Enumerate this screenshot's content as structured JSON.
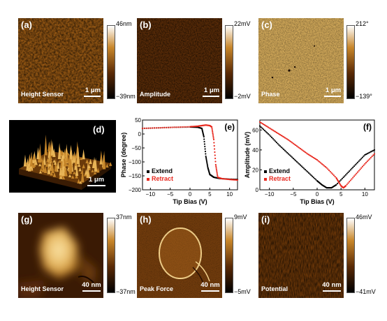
{
  "panels": {
    "a": {
      "label": "(a)",
      "caption": "Height Sensor",
      "scale": "1 μm",
      "cb_max": "46nm",
      "cb_min": "−39nm"
    },
    "b": {
      "label": "(b)",
      "caption": "Amplitude",
      "scale": "1 μm",
      "cb_max": "22mV",
      "cb_min": "−2mV"
    },
    "c": {
      "label": "(c)",
      "caption": "Phase",
      "scale": "1 μm",
      "cb_max": "212°",
      "cb_min": "−139°"
    },
    "d": {
      "label": "(d)",
      "scale": "1 μm"
    },
    "g": {
      "label": "(g)",
      "caption": "Height Sensor",
      "scale": "40 nm",
      "cb_max": "37nm",
      "cb_min": "−37nm"
    },
    "h": {
      "label": "(h)",
      "caption": "Peak Force",
      "scale": "40 nm",
      "cb_max": "9mV",
      "cb_min": "−5mV"
    },
    "i": {
      "label": "(i)",
      "caption": "Potential",
      "scale": "40 nm",
      "cb_max": "46mV",
      "cb_min": "−41mV"
    }
  },
  "colors": {
    "extend": "#000000",
    "retract": "#e8281e",
    "afm_dark": "#2a1204",
    "afm_mid": "#9a5a14",
    "afm_light": "#f4e2b0"
  },
  "chart_data": [
    {
      "id": "e",
      "label": "(e)",
      "type": "scatter",
      "xlabel": "Tip Bias (V)",
      "ylabel": "Phase (degree)",
      "xlim": [
        -12,
        12
      ],
      "ylim": [
        -200,
        50
      ],
      "xticks": [
        -10,
        -5,
        0,
        5,
        10
      ],
      "yticks": [
        -200,
        -150,
        -100,
        -50,
        0,
        50
      ],
      "xticklabels": [
        "−10",
        "−5",
        "0",
        "5",
        "10"
      ],
      "yticklabels": [
        "−200",
        "−150",
        "−100",
        "−50",
        "0",
        "50"
      ],
      "legend": [
        "Extend",
        "Retract"
      ],
      "legend_position": "bottom-left",
      "series": [
        {
          "name": "Extend",
          "color": "#000000",
          "x": [
            -12,
            -8,
            -4,
            0,
            2,
            3,
            3.5,
            4,
            4.5,
            5,
            5.5,
            6,
            7,
            8,
            10,
            12
          ],
          "y": [
            20,
            22,
            24,
            25,
            24,
            20,
            -10,
            -80,
            -120,
            -145,
            -150,
            -155,
            -158,
            -160,
            -162,
            -163
          ]
        },
        {
          "name": "Retract",
          "color": "#e8281e",
          "x": [
            12,
            10,
            8,
            7,
            6.5,
            6,
            5.5,
            5,
            4,
            3,
            2,
            0,
            -4,
            -8,
            -12
          ],
          "y": [
            -165,
            -163,
            -160,
            -155,
            -110,
            -20,
            25,
            30,
            32,
            30,
            28,
            26,
            24,
            22,
            20
          ]
        }
      ]
    },
    {
      "id": "f",
      "label": "(f)",
      "type": "scatter",
      "xlabel": "Tip Bias (V)",
      "ylabel": "Amplitude (mV)",
      "xlim": [
        -12,
        12
      ],
      "ylim": [
        0,
        70
      ],
      "xticks": [
        -10,
        -5,
        0,
        5,
        10
      ],
      "yticks": [
        0,
        20,
        40,
        60
      ],
      "xticklabels": [
        "−10",
        "−5",
        "0",
        "5",
        "10"
      ],
      "yticklabels": [
        "0",
        "20",
        "40",
        "60"
      ],
      "legend": [
        "Extend",
        "Retract"
      ],
      "legend_position": "bottom-left",
      "series": [
        {
          "name": "Extend",
          "color": "#000000",
          "x": [
            -12,
            -10,
            -8,
            -6,
            -4,
            -2,
            0,
            1,
            2,
            3,
            4,
            6,
            8,
            10,
            12
          ],
          "y": [
            64,
            55,
            45,
            36,
            27,
            18,
            9,
            5,
            2,
            2,
            5,
            15,
            25,
            35,
            40
          ]
        },
        {
          "name": "Retract",
          "color": "#e8281e",
          "x": [
            -12,
            -10,
            -8,
            -6,
            -4,
            -2,
            0,
            2,
            4,
            5,
            5.5,
            6,
            8,
            10,
            12
          ],
          "y": [
            68,
            62,
            56,
            50,
            43,
            36,
            30,
            22,
            12,
            4,
            2,
            4,
            15,
            26,
            36
          ]
        }
      ]
    }
  ]
}
